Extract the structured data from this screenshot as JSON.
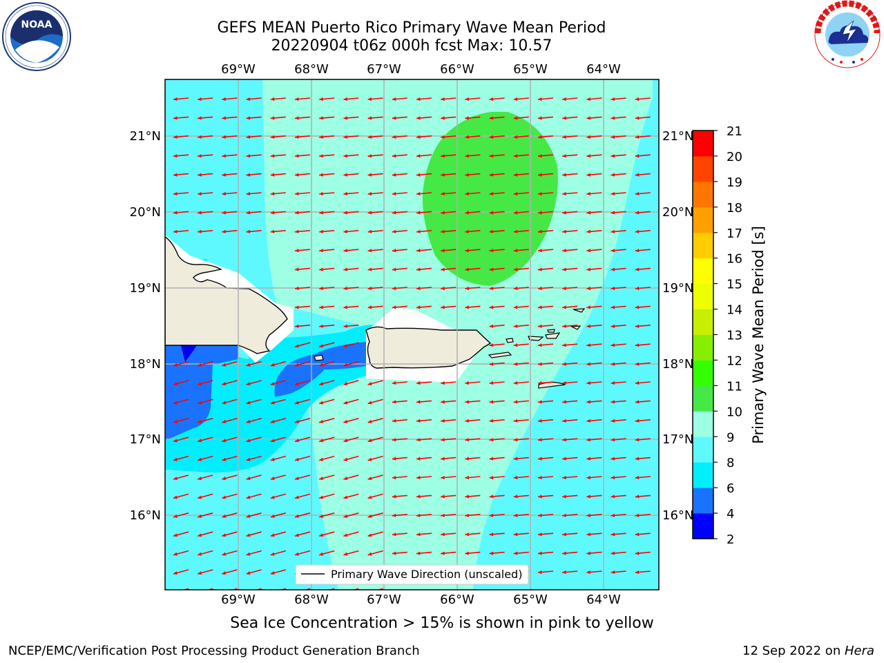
{
  "header": {
    "title_line1": "GEFS MEAN Puerto Rico Primary Wave Mean Period",
    "title_line2": "20220904 t06z 000h fcst   Max: 10.57"
  },
  "logos": {
    "noaa_text": "NOAA",
    "noaa_ring_text": "NATIONAL OCEANIC AND ATMOSPHERIC ADMINISTRATION · U.S. DEPARTMENT OF COMMERCE",
    "nws_ring_text": "NATIONAL WEATHER SERVICE"
  },
  "map": {
    "lon_labels": [
      "69°W",
      "68°W",
      "67°W",
      "66°W",
      "65°W",
      "64°W"
    ],
    "lat_labels": [
      "21°N",
      "20°N",
      "19°N",
      "18°N",
      "17°N",
      "16°N"
    ],
    "legend_label": "Primary Wave Direction (unscaled)",
    "arrow_color": "#ff0000",
    "land_color": "#efecdc",
    "colors": {
      "period_8_9": "#5ef9ff",
      "period_9_10": "#9dffe4",
      "period_10_11": "#46e846",
      "period_6_8": "#00eeff",
      "period_4_6": "#1a73ff",
      "period_2_4": "#0000ee"
    }
  },
  "colorbar": {
    "title": "Primary Wave Mean Period [s]",
    "ticks": [
      "2",
      "4",
      "6",
      "8",
      "9",
      "10",
      "11",
      "12",
      "13",
      "14",
      "15",
      "16",
      "17",
      "18",
      "19",
      "20",
      "21"
    ],
    "colors": [
      "#0000ff",
      "#1a73ff",
      "#00efff",
      "#5ef9ff",
      "#9dffe4",
      "#46e846",
      "#33ff00",
      "#88ee00",
      "#c8ee00",
      "#eeff00",
      "#ffff00",
      "#ffcc00",
      "#ffa000",
      "#ff7700",
      "#ff4400",
      "#ff0000"
    ]
  },
  "subtitle": "Sea Ice Concentration > 15% is shown in pink to yellow",
  "footer": {
    "left": "NCEP/EMC/Verification Post Processing Product Generation Branch",
    "right_prefix": "12 Sep 2022 on ",
    "right_host": "Hera"
  }
}
